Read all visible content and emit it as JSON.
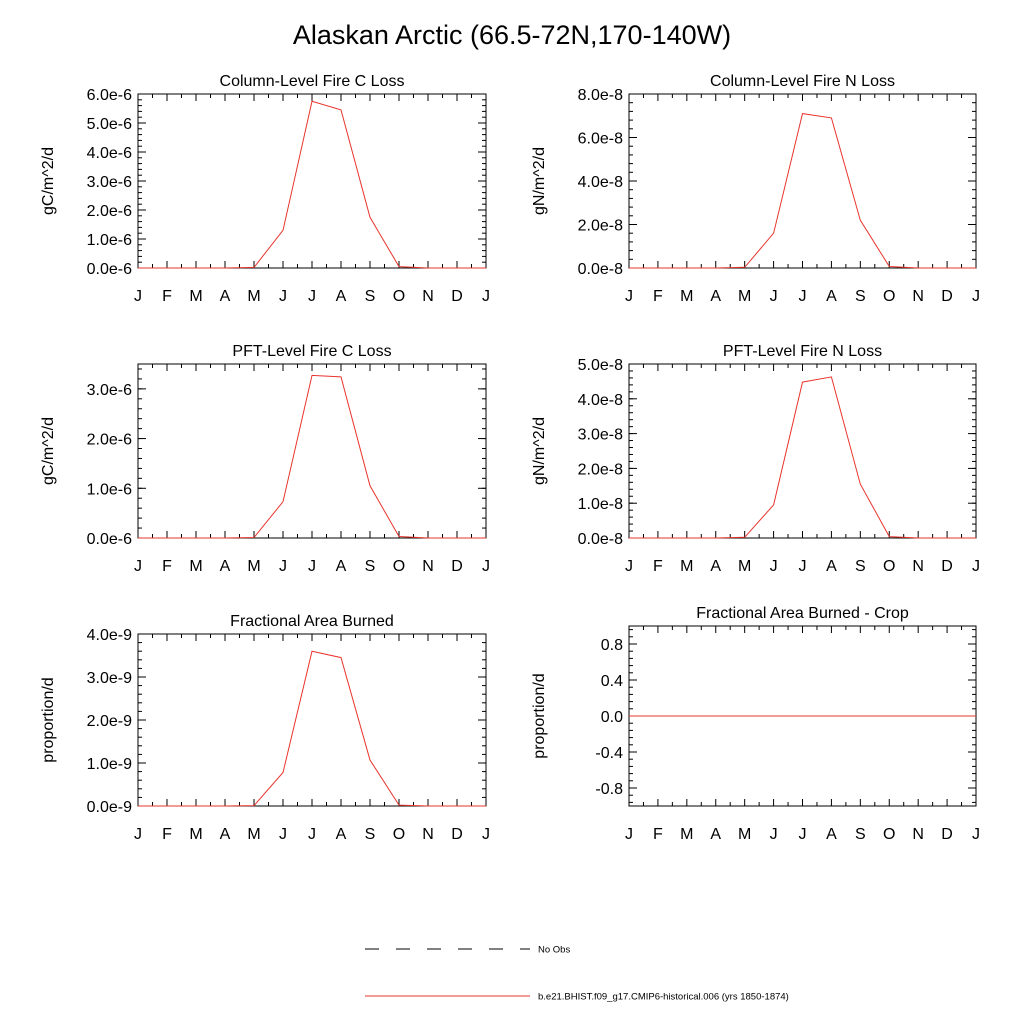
{
  "page": {
    "title": "Alaskan Arctic (66.5-72N,170-140W)"
  },
  "legend": {
    "items": [
      {
        "label": "No Obs",
        "color": "#000000",
        "style": "dashed"
      },
      {
        "label": "b.e21.BHIST.f09_g17.CMIP6-historical.006 (yrs 1850-1874)",
        "color": "#e8342c",
        "style": "solid"
      }
    ]
  },
  "chart_data": [
    {
      "type": "line",
      "title": "Column-Level Fire C Loss",
      "ylabel": "gC/m^2/d",
      "categories": [
        "J",
        "F",
        "M",
        "A",
        "M",
        "J",
        "J",
        "A",
        "S",
        "O",
        "N",
        "D",
        "J"
      ],
      "yticks": [
        "0.0e-6",
        "1.0e-6",
        "2.0e-6",
        "3.0e-6",
        "4.0e-6",
        "5.0e-6",
        "6.0e-6"
      ],
      "ytick_values": [
        0,
        1e-06,
        2e-06,
        3e-06,
        4e-06,
        5e-06,
        6e-06
      ],
      "ylim": [
        0,
        6e-06
      ],
      "grid": false,
      "series": [
        {
          "color": "#e8342c",
          "values": [
            0,
            0,
            0,
            0,
            2e-08,
            1.3e-06,
            5.75e-06,
            5.45e-06,
            1.75e-06,
            5e-08,
            0,
            0,
            0
          ]
        }
      ]
    },
    {
      "type": "line",
      "title": "Column-Level Fire N Loss",
      "ylabel": "gN/m^2/d",
      "categories": [
        "J",
        "F",
        "M",
        "A",
        "M",
        "J",
        "J",
        "A",
        "S",
        "O",
        "N",
        "D",
        "J"
      ],
      "yticks": [
        "0.0e-8",
        "2.0e-8",
        "4.0e-8",
        "6.0e-8",
        "8.0e-8"
      ],
      "ytick_values": [
        0,
        2e-08,
        4e-08,
        6e-08,
        8e-08
      ],
      "ylim": [
        0,
        8e-08
      ],
      "grid": false,
      "series": [
        {
          "color": "#e8342c",
          "values": [
            0,
            0,
            0,
            0,
            3e-10,
            1.6e-08,
            7.1e-08,
            6.9e-08,
            2.2e-08,
            7e-10,
            0,
            0,
            0
          ]
        }
      ]
    },
    {
      "type": "line",
      "title": "PFT-Level Fire C Loss",
      "ylabel": "gC/m^2/d",
      "categories": [
        "J",
        "F",
        "M",
        "A",
        "M",
        "J",
        "J",
        "A",
        "S",
        "O",
        "N",
        "D",
        "J"
      ],
      "yticks": [
        "0.0e-6",
        "1.0e-6",
        "2.0e-6",
        "3.0e-6"
      ],
      "ytick_values": [
        0,
        1e-06,
        2e-06,
        3e-06
      ],
      "ylim": [
        0,
        3.5e-06
      ],
      "grid": false,
      "series": [
        {
          "color": "#e8342c",
          "values": [
            0,
            0,
            0,
            0,
            1e-08,
            7.3e-07,
            3.27e-06,
            3.24e-06,
            1.05e-06,
            3e-08,
            0,
            0,
            0
          ]
        }
      ]
    },
    {
      "type": "line",
      "title": "PFT-Level Fire N Loss",
      "ylabel": "gN/m^2/d",
      "categories": [
        "J",
        "F",
        "M",
        "A",
        "M",
        "J",
        "J",
        "A",
        "S",
        "O",
        "N",
        "D",
        "J"
      ],
      "yticks": [
        "0.0e-8",
        "1.0e-8",
        "2.0e-8",
        "3.0e-8",
        "4.0e-8",
        "5.0e-8"
      ],
      "ytick_values": [
        0,
        1e-08,
        2e-08,
        3e-08,
        4e-08,
        5e-08
      ],
      "ylim": [
        0,
        5e-08
      ],
      "grid": false,
      "series": [
        {
          "color": "#e8342c",
          "values": [
            0,
            0,
            0,
            0,
            2e-10,
            9.5e-09,
            4.48e-08,
            4.63e-08,
            1.55e-08,
            4e-10,
            0,
            0,
            0
          ]
        }
      ]
    },
    {
      "type": "line",
      "title": "Fractional Area Burned",
      "ylabel": "proportion/d",
      "categories": [
        "J",
        "F",
        "M",
        "A",
        "M",
        "J",
        "J",
        "A",
        "S",
        "O",
        "N",
        "D",
        "J"
      ],
      "yticks": [
        "0.0e-9",
        "1.0e-9",
        "2.0e-9",
        "3.0e-9",
        "4.0e-9"
      ],
      "ytick_values": [
        0,
        1e-09,
        2e-09,
        3e-09,
        4e-09
      ],
      "ylim": [
        0,
        4e-09
      ],
      "grid": false,
      "series": [
        {
          "color": "#e8342c",
          "values": [
            0,
            0,
            0,
            0,
            1e-11,
            7.8e-10,
            3.6e-09,
            3.45e-09,
            1.07e-09,
            2e-11,
            0,
            0,
            0
          ]
        }
      ]
    },
    {
      "type": "line",
      "title": "Fractional Area Burned - Crop",
      "ylabel": "proportion/d",
      "categories": [
        "J",
        "F",
        "M",
        "A",
        "M",
        "J",
        "J",
        "A",
        "S",
        "O",
        "N",
        "D",
        "J"
      ],
      "yticks": [
        "-0.8",
        "-0.4",
        "0.0",
        "0.4",
        "0.8"
      ],
      "ytick_values": [
        -0.8,
        -0.4,
        0,
        0.4,
        0.8
      ],
      "ylim": [
        -1.0,
        1.0
      ],
      "grid": false,
      "series": [
        {
          "color": "#e8342c",
          "values": [
            0,
            0,
            0,
            0,
            0,
            0,
            0,
            0,
            0,
            0,
            0,
            0,
            0
          ]
        }
      ]
    }
  ]
}
